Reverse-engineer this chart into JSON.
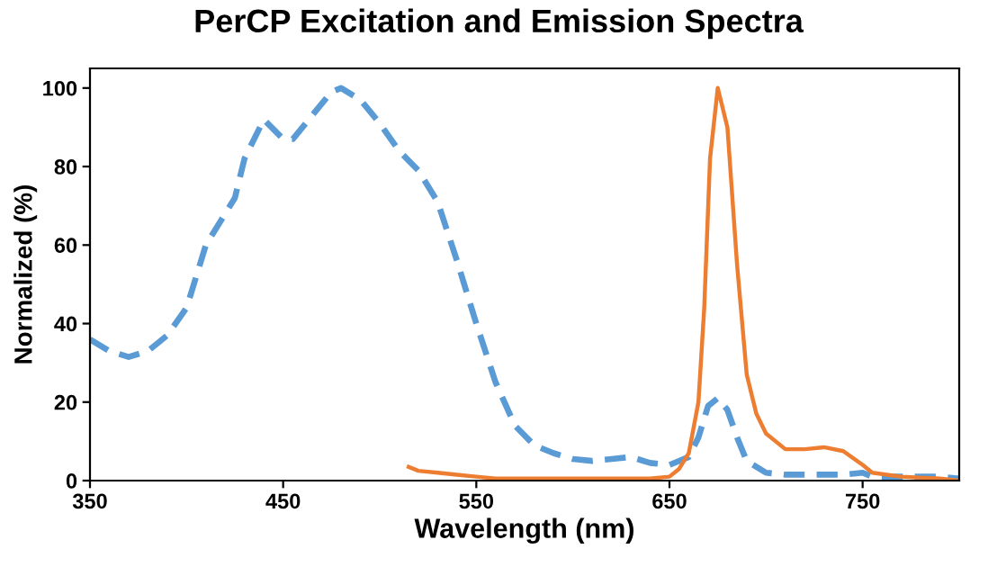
{
  "chart_data": {
    "type": "line",
    "title": "PerCP Excitation and Emission Spectra",
    "xlabel": "Wavelength (nm)",
    "ylabel": "Normalized (%)",
    "xlim": [
      350,
      800
    ],
    "xticks": [
      350,
      450,
      550,
      650,
      750
    ],
    "ylim": [
      0,
      105
    ],
    "yticks": [
      0,
      20,
      40,
      60,
      80,
      100
    ],
    "grid": false,
    "legend": false,
    "series": [
      {
        "color": "#5b9bd5",
        "line_style": "dashed",
        "x": [
          350,
          360,
          370,
          380,
          390,
          400,
          410,
          420,
          425,
          430,
          440,
          450,
          455,
          465,
          475,
          480,
          490,
          500,
          510,
          520,
          530,
          540,
          550,
          560,
          570,
          580,
          590,
          600,
          610,
          620,
          630,
          640,
          650,
          660,
          665,
          670,
          675,
          680,
          685,
          690,
          700,
          710,
          720,
          740,
          750,
          755,
          770,
          790,
          800
        ],
        "values": [
          36,
          33,
          31.5,
          33,
          37,
          44,
          60,
          68,
          72,
          82,
          92,
          87,
          87,
          93,
          99,
          100,
          97,
          91,
          84,
          79,
          71,
          56,
          40,
          25,
          14,
          9,
          7,
          5.5,
          5,
          5.5,
          6,
          4.5,
          4,
          6,
          11,
          19,
          21,
          18,
          11,
          5,
          2,
          1.5,
          1.5,
          1.5,
          2,
          1,
          1,
          1,
          0.5
        ]
      },
      {
        "color": "#ed7d31",
        "line_style": "solid",
        "x": [
          515,
          520,
          530,
          540,
          550,
          560,
          600,
          640,
          650,
          655,
          660,
          665,
          668,
          671,
          675,
          680,
          685,
          690,
          695,
          700,
          710,
          720,
          730,
          740,
          750,
          755,
          770,
          790,
          800
        ],
        "values": [
          3.5,
          2.5,
          2,
          1.5,
          1,
          0.5,
          0.5,
          0.5,
          1,
          3,
          7,
          20,
          44,
          82,
          100,
          90,
          55,
          27,
          17,
          12,
          8,
          8,
          8.5,
          7.5,
          4,
          2,
          1,
          0.5,
          0
        ]
      }
    ]
  }
}
